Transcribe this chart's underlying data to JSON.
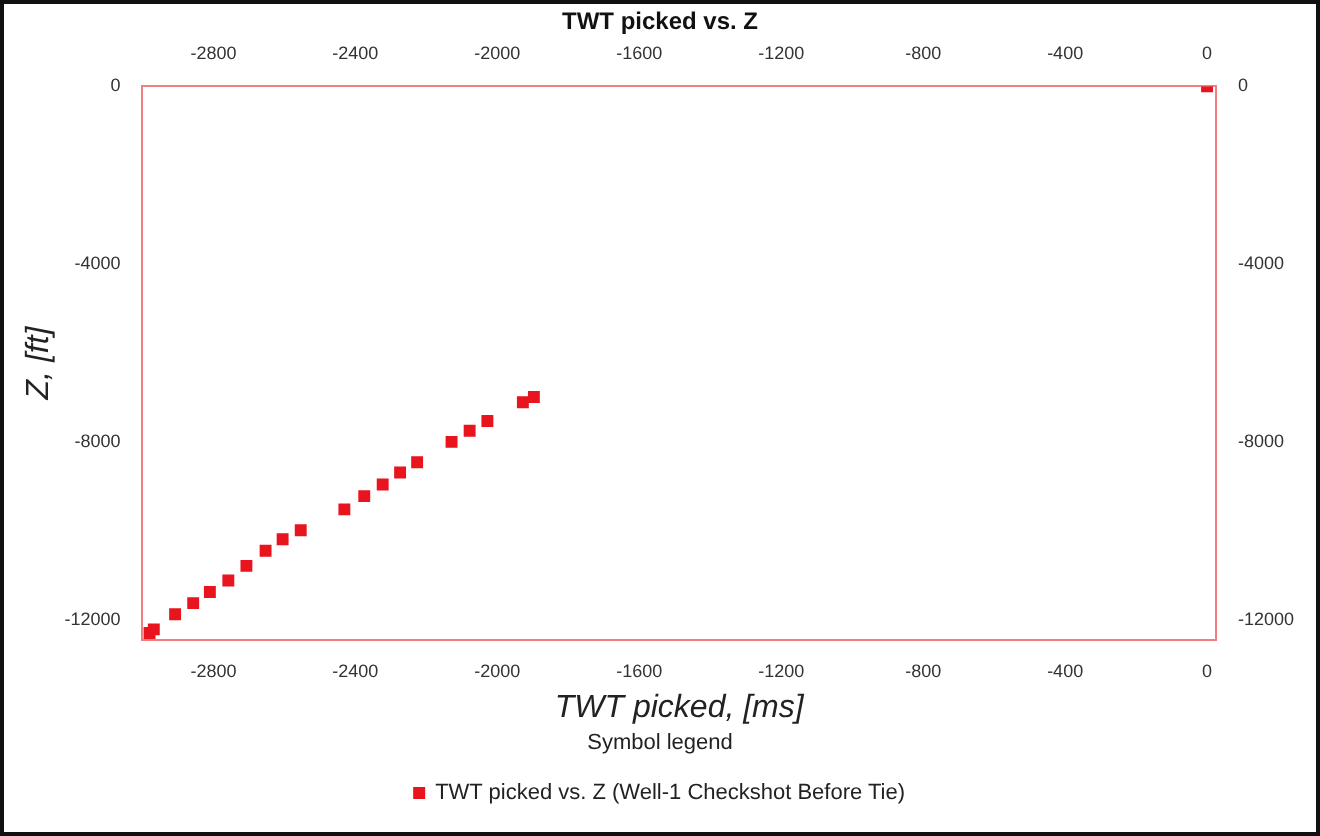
{
  "chart_data": {
    "type": "scatter",
    "title": "TWT picked vs. Z",
    "xlabel": "TWT picked, [ms]",
    "ylabel": "Z, [ft]",
    "legend_title": "Symbol legend",
    "legend": "bottom",
    "marker": "square",
    "grid": false,
    "xlim": [
      -3000,
      25
    ],
    "xticks": [
      -2800,
      -2400,
      -2000,
      -1600,
      -1200,
      -800,
      -400,
      0
    ],
    "x2lim": [
      -3000,
      25
    ],
    "x2ticks": [
      -2800,
      -2400,
      -2000,
      -1600,
      -1200,
      -800,
      -400,
      0
    ],
    "ylim": [
      -12450,
      0
    ],
    "yticks": [
      0,
      -4000,
      -8000,
      -12000
    ],
    "y2lim": [
      -12450,
      0
    ],
    "y2ticks": [
      0,
      -4000,
      -8000,
      -12000
    ],
    "series": [
      {
        "name": "TWT picked vs. Z (Well-1 Checkshot Before Tie)",
        "color": "#e8141e",
        "x": [
          -2980,
          -2968,
          -2908,
          -2857,
          -2810,
          -2758,
          -2707,
          -2653,
          -2605,
          -2554,
          -2431,
          -2375,
          -2323,
          -2274,
          -2226,
          -2129,
          -2078,
          -2028,
          -1928,
          -1897,
          0
        ],
        "values": [
          -12300,
          -12220,
          -11880,
          -11630,
          -11380,
          -11120,
          -10790,
          -10450,
          -10190,
          -9990,
          -9520,
          -9220,
          -8960,
          -8690,
          -8460,
          -8000,
          -7750,
          -7530,
          -7110,
          -6990,
          0
        ]
      }
    ]
  }
}
